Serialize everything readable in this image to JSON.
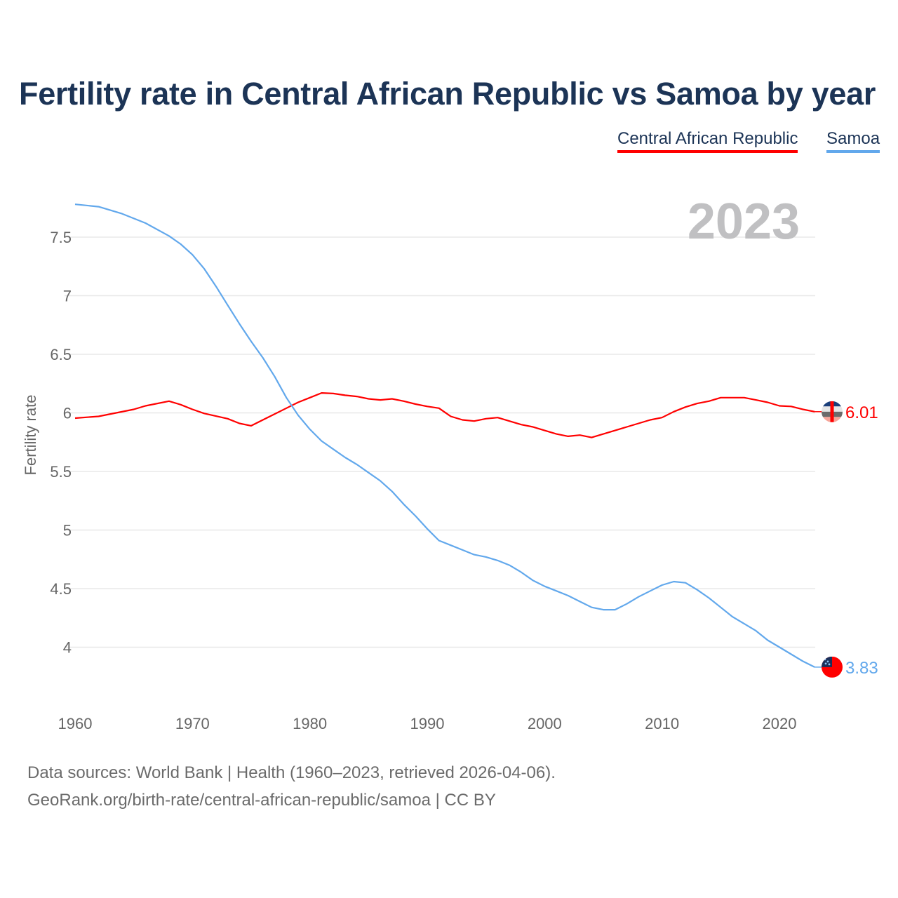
{
  "title": "Fertility rate in Central African Republic vs Samoa by year",
  "legend": [
    "Central African Republic",
    "Samoa"
  ],
  "year_label": "2023",
  "footer": {
    "line1": "Data sources: World Bank | Health (1960–2023, retrieved 2026-04-06).",
    "line2": "GeoRank.org/birth-rate/central-african-republic/samoa | CC BY"
  },
  "chart_data": {
    "type": "line",
    "title": "Fertility rate in Central African Republic vs Samoa by year",
    "xlabel": "",
    "ylabel": "Fertility rate",
    "xlim": [
      1960,
      2023
    ],
    "ylim": [
      3.6,
      7.85
    ],
    "xticks": [
      1960,
      1970,
      1980,
      1990,
      2000,
      2010,
      2020
    ],
    "yticks": [
      4,
      4.5,
      5,
      5.5,
      6,
      6.5,
      7,
      7.5
    ],
    "ytick_labels": [
      "4",
      "4.5",
      "5",
      "5.5",
      "6",
      "6.5",
      "7",
      "7.5"
    ],
    "grid": true,
    "legend_position": "top-right",
    "series": [
      {
        "name": "Central African Republic",
        "color": "#ff0000",
        "end_label": "6.01",
        "x": [
          1960,
          1962,
          1965,
          1966,
          1968,
          1969,
          1970,
          1971,
          1973,
          1974,
          1975,
          1976,
          1978,
          1979,
          1980,
          1981,
          1982,
          1983,
          1984,
          1985,
          1986,
          1987,
          1988,
          1989,
          1990,
          1991,
          1992,
          1993,
          1994,
          1995,
          1996,
          1997,
          1998,
          1999,
          2000,
          2001,
          2002,
          2003,
          2004,
          2005,
          2006,
          2007,
          2008,
          2009,
          2010,
          2011,
          2012,
          2013,
          2014,
          2015,
          2016,
          2017,
          2018,
          2019,
          2020,
          2021,
          2022,
          2023
        ],
        "y": [
          5.955,
          5.97,
          6.03,
          6.06,
          6.1,
          6.07,
          6.03,
          5.995,
          5.95,
          5.91,
          5.89,
          5.94,
          6.04,
          6.09,
          6.13,
          6.17,
          6.165,
          6.15,
          6.14,
          6.12,
          6.11,
          6.12,
          6.1,
          6.075,
          6.055,
          6.04,
          5.97,
          5.94,
          5.93,
          5.95,
          5.96,
          5.93,
          5.9,
          5.88,
          5.85,
          5.82,
          5.8,
          5.81,
          5.79,
          5.82,
          5.85,
          5.88,
          5.91,
          5.94,
          5.96,
          6.01,
          6.05,
          6.08,
          6.1,
          6.13,
          6.13,
          6.13,
          6.11,
          6.09,
          6.06,
          6.055,
          6.03,
          6.01
        ]
      },
      {
        "name": "Samoa",
        "color": "#62a8ec",
        "end_label": "3.83",
        "x": [
          1960,
          1962,
          1964,
          1966,
          1968,
          1969,
          1970,
          1971,
          1972,
          1973,
          1974,
          1975,
          1976,
          1977,
          1978,
          1979,
          1980,
          1981,
          1982,
          1983,
          1984,
          1985,
          1986,
          1987,
          1988,
          1989,
          1990,
          1991,
          1992,
          1993,
          1994,
          1995,
          1996,
          1997,
          1998,
          1999,
          2000,
          2001,
          2002,
          2003,
          2004,
          2005,
          2006,
          2007,
          2008,
          2009,
          2010,
          2011,
          2012,
          2013,
          2014,
          2015,
          2016,
          2017,
          2018,
          2019,
          2020,
          2021,
          2022,
          2023
        ],
        "y": [
          7.78,
          7.76,
          7.7,
          7.62,
          7.51,
          7.44,
          7.35,
          7.23,
          7.08,
          6.92,
          6.76,
          6.61,
          6.47,
          6.31,
          6.13,
          5.98,
          5.86,
          5.76,
          5.69,
          5.62,
          5.56,
          5.49,
          5.42,
          5.33,
          5.22,
          5.12,
          5.01,
          4.91,
          4.87,
          4.83,
          4.79,
          4.77,
          4.74,
          4.7,
          4.64,
          4.57,
          4.52,
          4.48,
          4.44,
          4.39,
          4.34,
          4.32,
          4.32,
          4.37,
          4.43,
          4.48,
          4.53,
          4.56,
          4.55,
          4.49,
          4.42,
          4.34,
          4.26,
          4.2,
          4.14,
          4.06,
          4.0,
          3.94,
          3.88,
          3.83
        ]
      }
    ]
  }
}
